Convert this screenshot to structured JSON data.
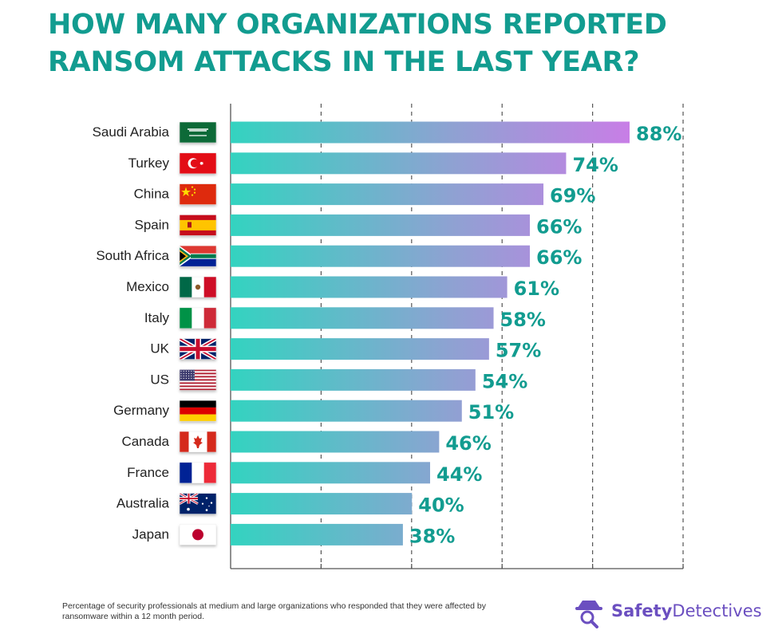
{
  "title": "HOW MANY ORGANIZATIONS REPORTED RANSOM ATTACKS IN THE LAST YEAR?",
  "footnote": "Percentage of security professionals at medium and large organizations who responded that they were affected by ransomware within a 12 month period.",
  "logo": {
    "bold": "Safety",
    "rest": "Detectives",
    "icon": "detective-icon",
    "color": "#6b4fc0"
  },
  "colors": {
    "title": "#129c90",
    "bar_start": "#33d3c0",
    "bar_mid": "#8ea2d2",
    "bar_end": "#c87ee6",
    "value_label": "#129c90",
    "grid": "#555555"
  },
  "chart_data": {
    "type": "bar",
    "orientation": "horizontal",
    "title": "HOW MANY ORGANIZATIONS REPORTED RANSOM ATTACKS IN THE LAST YEAR?",
    "xlabel": "",
    "ylabel": "",
    "xlim": [
      0,
      100
    ],
    "grid": true,
    "categories": [
      "Saudi Arabia",
      "Turkey",
      "China",
      "Spain",
      "South Africa",
      "Mexico",
      "Italy",
      "UK",
      "US",
      "Germany",
      "Canada",
      "France",
      "Australia",
      "Japan"
    ],
    "values": [
      88,
      74,
      69,
      66,
      66,
      61,
      58,
      57,
      54,
      51,
      46,
      44,
      40,
      38
    ],
    "value_labels": [
      "88%",
      "74%",
      "69%",
      "66%",
      "66%",
      "61%",
      "58%",
      "57%",
      "54%",
      "51%",
      "46%",
      "44%",
      "40%",
      "38%"
    ],
    "flag_icons": [
      "saudi-arabia-flag-icon",
      "turkey-flag-icon",
      "china-flag-icon",
      "spain-flag-icon",
      "south-africa-flag-icon",
      "mexico-flag-icon",
      "italy-flag-icon",
      "uk-flag-icon",
      "us-flag-icon",
      "germany-flag-icon",
      "canada-flag-icon",
      "france-flag-icon",
      "australia-flag-icon",
      "japan-flag-icon"
    ]
  }
}
